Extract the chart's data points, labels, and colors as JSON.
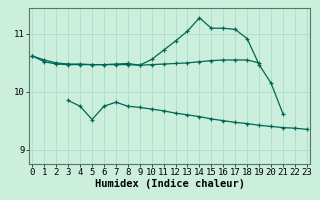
{
  "xlabel": "Humidex (Indice chaleur)",
  "background_color": "#cceedd",
  "grid_color": "#aaddcc",
  "line_color": "#006655",
  "x_values": [
    0,
    1,
    2,
    3,
    4,
    5,
    6,
    7,
    8,
    9,
    10,
    11,
    12,
    13,
    14,
    15,
    16,
    17,
    18,
    19,
    20,
    21,
    22,
    23
  ],
  "line1": [
    10.62,
    10.55,
    10.5,
    10.48,
    10.48,
    10.47,
    10.47,
    10.47,
    10.47,
    10.46,
    10.47,
    10.48,
    10.49,
    10.5,
    10.52,
    10.54,
    10.55,
    10.55,
    10.55,
    10.5,
    null,
    null,
    null,
    null
  ],
  "line2": [
    10.62,
    10.52,
    10.48,
    10.47,
    10.47,
    10.47,
    10.47,
    10.48,
    10.49,
    10.46,
    10.56,
    10.72,
    10.88,
    11.05,
    11.28,
    11.1,
    11.1,
    11.08,
    10.92,
    10.47,
    10.15,
    9.62,
    null,
    null
  ],
  "line3": [
    null,
    null,
    null,
    9.85,
    9.75,
    9.52,
    9.75,
    9.82,
    9.75,
    9.73,
    9.7,
    9.67,
    9.63,
    9.6,
    9.57,
    9.53,
    9.5,
    9.47,
    9.45,
    9.42,
    9.4,
    9.38,
    9.37,
    9.35
  ],
  "ylim_lo": 8.75,
  "ylim_hi": 11.45,
  "yticks": [
    9,
    10,
    11
  ],
  "xticks": [
    0,
    1,
    2,
    3,
    4,
    5,
    6,
    7,
    8,
    9,
    10,
    11,
    12,
    13,
    14,
    15,
    16,
    17,
    18,
    19,
    20,
    21,
    22,
    23
  ],
  "markersize": 3,
  "linewidth": 0.9,
  "xlabel_fontsize": 7.5,
  "tick_fontsize": 6.5
}
